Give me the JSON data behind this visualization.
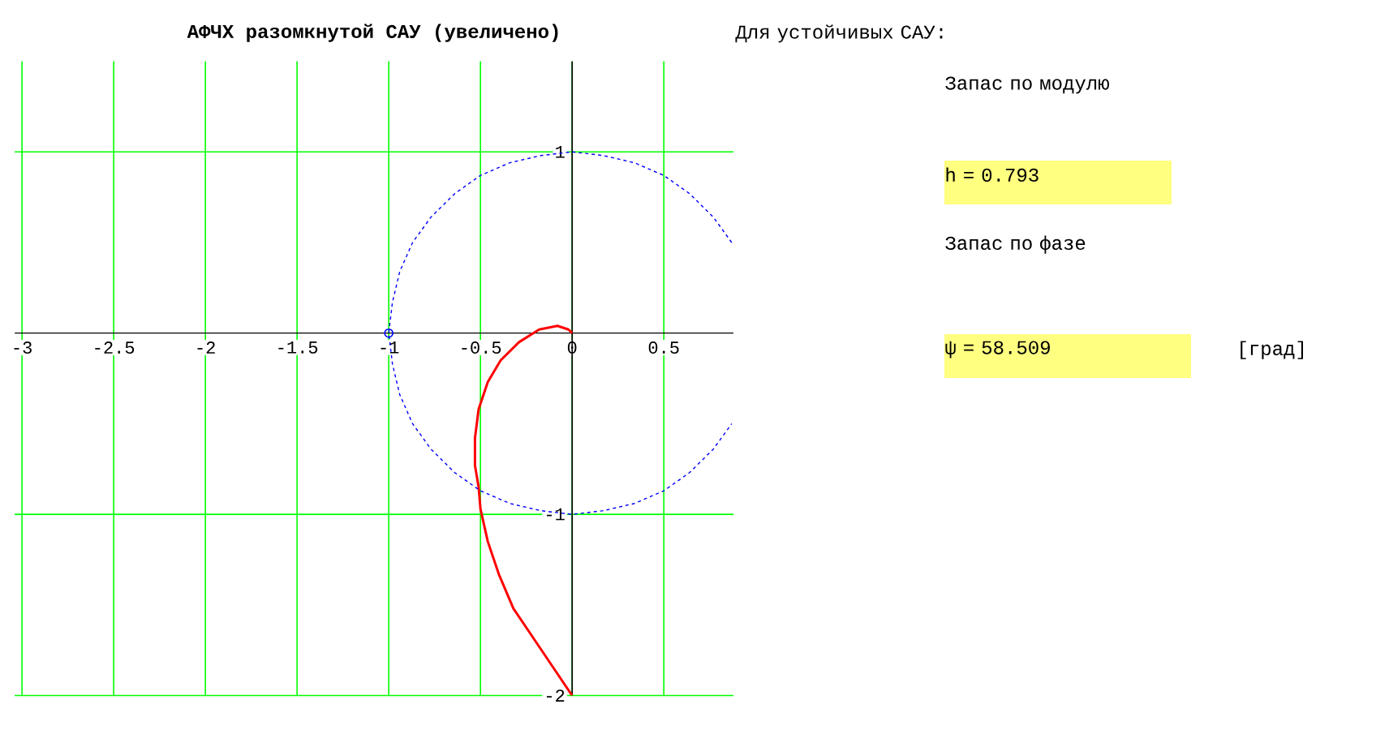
{
  "chart_data": {
    "type": "line",
    "title": "АФЧХ разомкнутой САУ (увеличено)",
    "xlim": [
      -3.04,
      0.88
    ],
    "ylim": [
      -2,
      1.5
    ],
    "xticks": [
      -3,
      -2.5,
      -2,
      -1.5,
      -1,
      -0.5,
      0,
      0.5
    ],
    "yticks": [
      -2,
      -1,
      1
    ],
    "grid": true,
    "series": [
      {
        "color": "#ff0000",
        "line_style": "solid",
        "marker": "none",
        "x": [
          0,
          -0.08,
          -0.2,
          -0.32,
          -0.4,
          -0.46,
          -0.5,
          -0.51,
          -0.53,
          -0.53,
          -0.51,
          -0.46,
          -0.39,
          -0.29,
          -0.18,
          -0.08,
          -0.02,
          0
        ],
        "values": [
          -2,
          -1.88,
          -1.7,
          -1.52,
          -1.33,
          -1.15,
          -0.97,
          -0.85,
          -0.73,
          -0.58,
          -0.42,
          -0.27,
          -0.15,
          -0.05,
          0.02,
          0.04,
          0.02,
          0
        ]
      },
      {
        "color": "#0000ff",
        "line_style": "dashed",
        "marker": "none",
        "x": [
          0.87,
          0.77,
          0.64,
          0.5,
          0.34,
          0.17,
          0,
          -0.17,
          -0.34,
          -0.5,
          -0.64,
          -0.77,
          -0.87,
          -0.94,
          -0.98,
          -1,
          -0.98,
          -0.94,
          -0.87,
          -0.77,
          -0.64,
          -0.5,
          -0.34,
          -0.17,
          0,
          0.17,
          0.34,
          0.5,
          0.64,
          0.77,
          0.87
        ],
        "values": [
          0.5,
          0.64,
          0.77,
          0.87,
          0.94,
          0.98,
          1,
          0.98,
          0.94,
          0.87,
          0.77,
          0.64,
          0.5,
          0.34,
          0.17,
          0,
          -0.17,
          -0.34,
          -0.5,
          -0.64,
          -0.77,
          -0.87,
          -0.94,
          -0.98,
          -1,
          -0.98,
          -0.94,
          -0.87,
          -0.77,
          -0.64,
          -0.5
        ]
      },
      {
        "type": "scatter",
        "color": "#0000ff",
        "marker": "circle",
        "x": [
          -1
        ],
        "values": [
          0
        ]
      }
    ],
    "annotations": [
      "Для устойчивых САУ:",
      "Запас по модулю",
      "h = 0.793",
      "Запас по фазе",
      "ψ = 58.509",
      "[град]"
    ]
  }
}
